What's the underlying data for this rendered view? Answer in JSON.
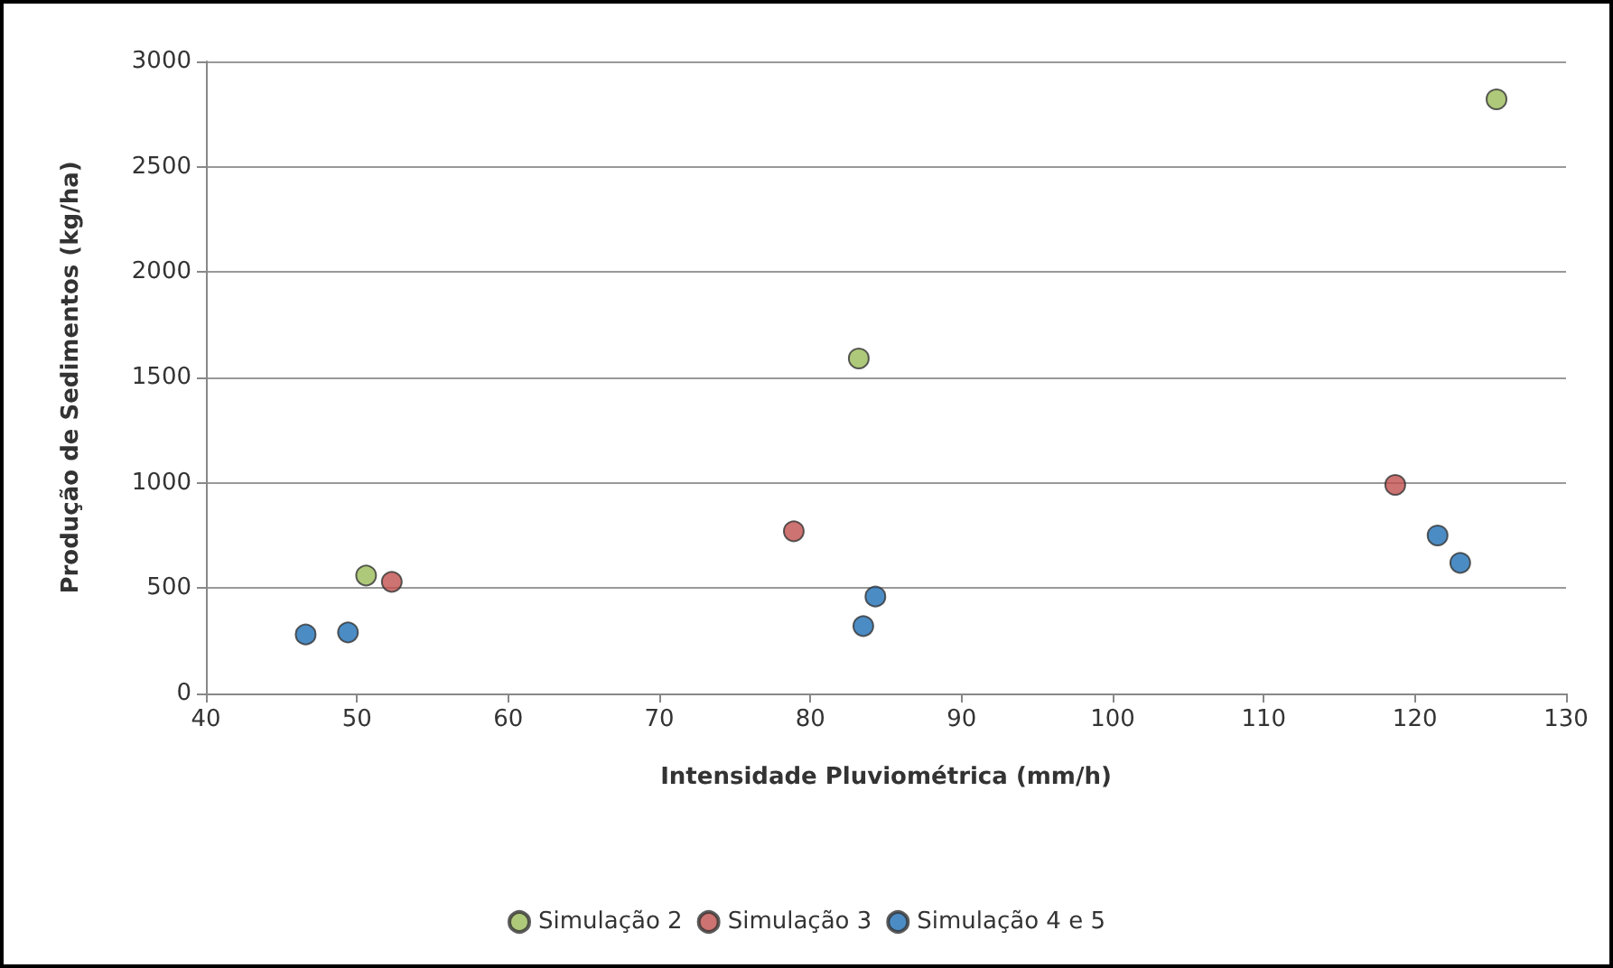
{
  "chart_data": {
    "type": "scatter",
    "xlabel": "Intensidade Pluviométrica (mm/h)",
    "ylabel": "Produção de Sedimentos (kg/ha)",
    "xlim": [
      40,
      130
    ],
    "xticks": [
      40,
      50,
      60,
      70,
      80,
      90,
      100,
      110,
      120,
      130
    ],
    "ylim": [
      0,
      3000
    ],
    "yticks": [
      0,
      500,
      1000,
      1500,
      2000,
      2500,
      3000
    ],
    "grid": "y",
    "legend": "bottom",
    "marker": "circle",
    "series": [
      {
        "name": "Simulação 2",
        "color": "#9bbb59",
        "x": [
          50.6,
          83.2,
          125.4
        ],
        "values": [
          560,
          1590,
          2820
        ]
      },
      {
        "name": "Simulação 3",
        "color": "#c0504d",
        "x": [
          52.3,
          78.9,
          118.7
        ],
        "values": [
          530,
          770,
          990
        ]
      },
      {
        "name": "Simulação 4 e 5",
        "color": "#1f6fb5",
        "x": [
          46.6,
          49.4,
          83.5,
          84.3,
          121.5,
          123
        ],
        "values": [
          280,
          290,
          320,
          460,
          750,
          620
        ]
      }
    ]
  }
}
